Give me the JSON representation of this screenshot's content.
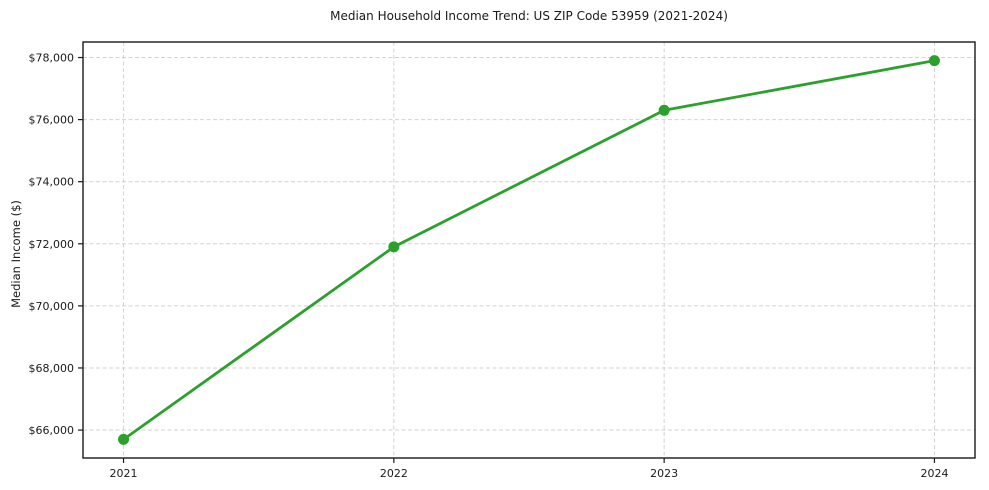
{
  "chart_data": {
    "type": "line",
    "title": "Median Household Income Trend: US ZIP Code 53959 (2021-2024)",
    "xlabel": "",
    "ylabel": "Median Income ($)",
    "x": [
      2021,
      2022,
      2023,
      2024
    ],
    "xtick_labels": [
      "2021",
      "2022",
      "2023",
      "2024"
    ],
    "series": [
      {
        "name": "Median Household Income",
        "values": [
          65700,
          71900,
          76300,
          77900
        ]
      }
    ],
    "yticks": [
      66000,
      68000,
      70000,
      72000,
      74000,
      76000,
      78000
    ],
    "ytick_labels": [
      "$66,000",
      "$68,000",
      "$70,000",
      "$72,000",
      "$74,000",
      "$76,000",
      "$78,000"
    ],
    "xlim": [
      2020.85,
      2024.15
    ],
    "ylim": [
      65100,
      78500
    ],
    "grid": true,
    "grid_style": "dashed",
    "legend": false,
    "legend_position": "none",
    "line_color": "#2ca02c",
    "marker": "circle",
    "marker_color": "#2ca02c",
    "background_color": "#ffffff",
    "grid_color": "#d2d2d2",
    "axis_color": "#1a1a1a",
    "text_color": "#1a1a1a"
  }
}
